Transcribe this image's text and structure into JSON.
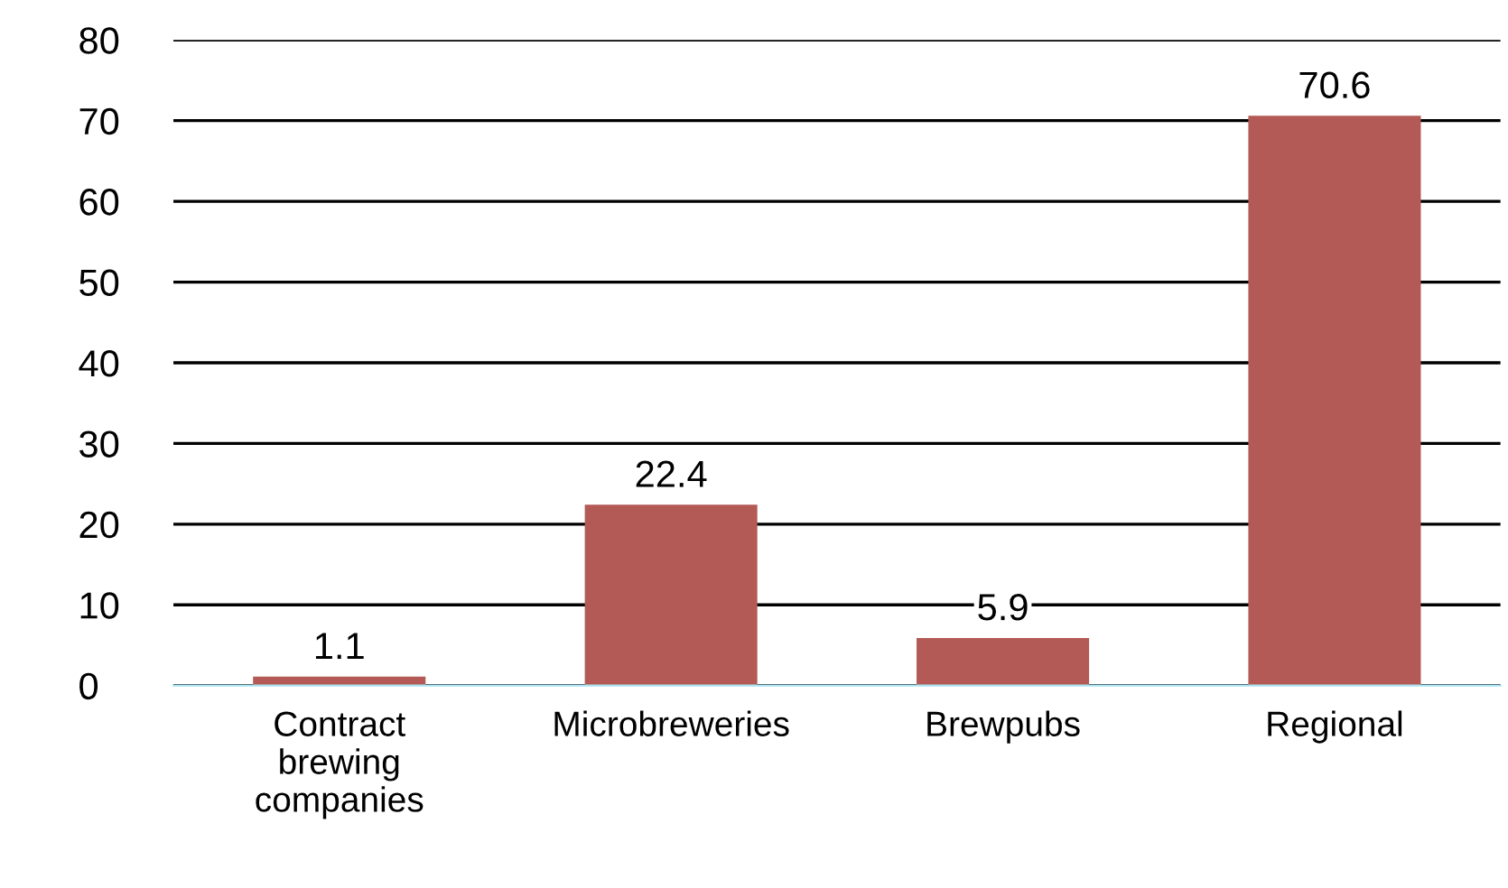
{
  "chart_data": {
    "type": "bar",
    "categories": [
      "Contract\nbrewing\ncompanies",
      "Microbreweries",
      "Brewpubs",
      "Regional"
    ],
    "values": [
      1.1,
      22.4,
      5.9,
      70.6
    ],
    "color": "#b35a56",
    "ylim": [
      0,
      80
    ],
    "yticks": [
      0,
      10,
      20,
      30,
      40,
      50,
      60,
      70,
      80
    ],
    "grid": "y",
    "data_labels": true,
    "legend": false
  }
}
